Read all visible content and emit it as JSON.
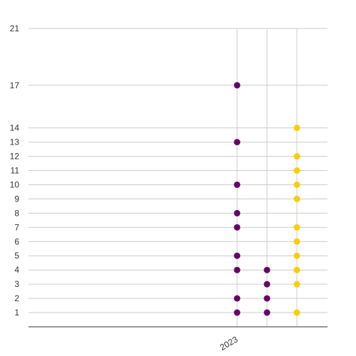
{
  "chart_data": {
    "type": "scatter",
    "title": "",
    "xlabel": "",
    "ylabel": "",
    "y_ticks": [
      1,
      2,
      3,
      4,
      5,
      6,
      7,
      8,
      9,
      10,
      11,
      12,
      13,
      14,
      17,
      21
    ],
    "x_tick_labels": [
      "2023"
    ],
    "grid": "on",
    "legend": "none",
    "series": [
      {
        "color": "#6a006a",
        "points": [
          {
            "x": 0,
            "y": 1
          },
          {
            "x": 0,
            "y": 2
          },
          {
            "x": 0,
            "y": 4
          },
          {
            "x": 0,
            "y": 5
          },
          {
            "x": 0,
            "y": 7
          },
          {
            "x": 0,
            "y": 8
          },
          {
            "x": 0,
            "y": 10
          },
          {
            "x": 0,
            "y": 13
          },
          {
            "x": 0,
            "y": 17
          }
        ]
      },
      {
        "color": "#6a006a",
        "points": [
          {
            "x": 1,
            "y": 1
          },
          {
            "x": 1,
            "y": 2
          },
          {
            "x": 1,
            "y": 3
          },
          {
            "x": 1,
            "y": 4
          }
        ]
      },
      {
        "color": "#ffcc00",
        "points": [
          {
            "x": 2,
            "y": 1
          },
          {
            "x": 2,
            "y": 3
          },
          {
            "x": 2,
            "y": 4
          },
          {
            "x": 2,
            "y": 5
          },
          {
            "x": 2,
            "y": 6
          },
          {
            "x": 2,
            "y": 7
          },
          {
            "x": 2,
            "y": 9
          },
          {
            "x": 2,
            "y": 10
          },
          {
            "x": 2,
            "y": 11
          },
          {
            "x": 2,
            "y": 12
          },
          {
            "x": 2,
            "y": 14
          }
        ]
      }
    ],
    "colors": {
      "grid": "#cccccc",
      "axis": "#333333",
      "text": "#333333"
    }
  }
}
